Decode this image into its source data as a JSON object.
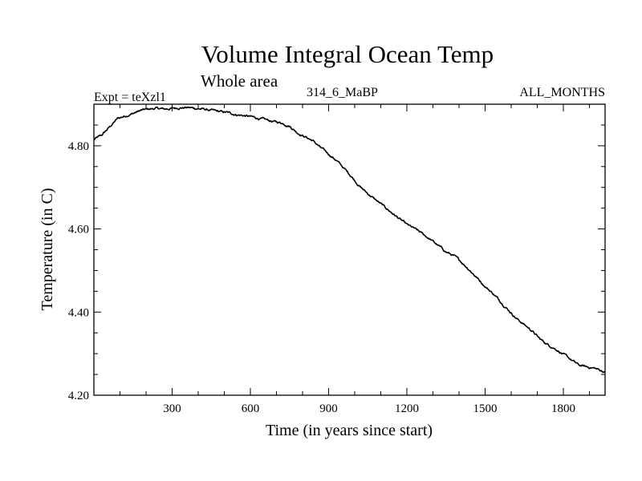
{
  "chart_data": {
    "type": "line",
    "title": "Volume Integral Ocean Temp",
    "subtitle": "Whole area",
    "experiment": "Expt = teXzl1",
    "run_label": "314_6_MaBP",
    "months_label": "ALL_MONTHS",
    "xlabel": "Time (in years since start)",
    "ylabel": "Temperature (in C)",
    "xlim": [
      0,
      1960
    ],
    "ylim": [
      4.2,
      4.9
    ],
    "xticks": [
      300,
      600,
      900,
      1200,
      1500,
      1800
    ],
    "xtick_labels": [
      "300",
      "600",
      "900",
      "1200",
      "1500",
      "1800"
    ],
    "yticks": [
      4.2,
      4.4,
      4.6,
      4.8
    ],
    "ytick_labels": [
      "4.20",
      "4.40",
      "4.60",
      "4.80"
    ],
    "grid": false,
    "series": [
      {
        "name": "Volume Integral Ocean Temp",
        "color": "#000000",
        "x": [
          0,
          30,
          60,
          90,
          120,
          150,
          180,
          210,
          240,
          270,
          300,
          330,
          360,
          390,
          420,
          450,
          480,
          510,
          540,
          570,
          600,
          630,
          660,
          690,
          720,
          750,
          780,
          810,
          840,
          870,
          900,
          930,
          960,
          990,
          1020,
          1050,
          1080,
          1110,
          1140,
          1170,
          1200,
          1230,
          1260,
          1290,
          1320,
          1350,
          1380,
          1410,
          1440,
          1470,
          1500,
          1530,
          1560,
          1590,
          1620,
          1650,
          1680,
          1710,
          1740,
          1770,
          1800,
          1830,
          1860,
          1890,
          1920,
          1950,
          1960
        ],
        "y": [
          4.815,
          4.825,
          4.845,
          4.865,
          4.872,
          4.878,
          4.885,
          4.888,
          4.89,
          4.888,
          4.89,
          4.892,
          4.892,
          4.89,
          4.888,
          4.885,
          4.882,
          4.88,
          4.876,
          4.873,
          4.87,
          4.866,
          4.862,
          4.858,
          4.855,
          4.848,
          4.832,
          4.822,
          4.812,
          4.795,
          4.78,
          4.765,
          4.745,
          4.725,
          4.702,
          4.685,
          4.67,
          4.655,
          4.64,
          4.625,
          4.61,
          4.6,
          4.588,
          4.575,
          4.56,
          4.545,
          4.535,
          4.52,
          4.502,
          4.482,
          4.462,
          4.445,
          4.425,
          4.405,
          4.385,
          4.37,
          4.355,
          4.335,
          4.322,
          4.312,
          4.298,
          4.285,
          4.272,
          4.268,
          4.265,
          4.258,
          4.255
        ]
      }
    ]
  }
}
